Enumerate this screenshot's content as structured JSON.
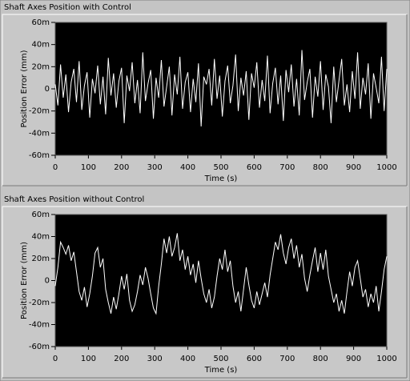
{
  "chart_data": [
    {
      "type": "line",
      "title": "Shaft Axes Position with Control",
      "xlabel": "Time (s)",
      "ylabel": "Position Error (mm)",
      "x": [
        0,
        8,
        16,
        24,
        32,
        40,
        48,
        56,
        64,
        72,
        80,
        88,
        96,
        104,
        112,
        120,
        128,
        136,
        144,
        152,
        160,
        168,
        176,
        184,
        192,
        200,
        208,
        216,
        224,
        232,
        240,
        248,
        256,
        264,
        272,
        280,
        288,
        296,
        304,
        312,
        320,
        328,
        336,
        344,
        352,
        360,
        368,
        376,
        384,
        392,
        400,
        408,
        416,
        424,
        432,
        440,
        448,
        456,
        464,
        472,
        480,
        488,
        496,
        504,
        512,
        520,
        528,
        536,
        544,
        552,
        560,
        568,
        576,
        584,
        592,
        600,
        608,
        616,
        624,
        632,
        640,
        648,
        656,
        664,
        672,
        680,
        688,
        696,
        704,
        712,
        720,
        728,
        736,
        744,
        752,
        760,
        768,
        776,
        784,
        792,
        800,
        808,
        816,
        824,
        832,
        840,
        848,
        856,
        864,
        872,
        880,
        888,
        896,
        904,
        912,
        920,
        928,
        936,
        944,
        952,
        960,
        968,
        976,
        984,
        992,
        1000
      ],
      "series": [
        {
          "color": "#ffffff",
          "values": [
            0.004,
            -0.015,
            0.022,
            -0.008,
            0.013,
            -0.021,
            0.006,
            0.018,
            -0.012,
            0.025,
            -0.019,
            0.003,
            0.015,
            -0.026,
            0.009,
            -0.004,
            0.021,
            -0.014,
            0.011,
            -0.023,
            0.028,
            -0.006,
            0.014,
            -0.017,
            0.007,
            0.019,
            -0.031,
            0.012,
            -0.002,
            0.024,
            -0.013,
            0.008,
            -0.022,
            0.033,
            -0.011,
            0.005,
            0.017,
            -0.027,
            0.01,
            -0.008,
            0.026,
            -0.016,
            0.002,
            0.02,
            -0.024,
            0.013,
            -0.005,
            0.029,
            -0.018,
            0.006,
            0.015,
            -0.021,
            0.009,
            -0.012,
            0.023,
            -0.034,
            0.011,
            0.004,
            0.018,
            -0.015,
            0.027,
            -0.009,
            0.012,
            -0.025,
            0.007,
            0.021,
            -0.013,
            0.003,
            0.031,
            -0.02,
            0.01,
            -0.006,
            0.016,
            -0.028,
            0.014,
            0.001,
            0.024,
            -0.017,
            0.008,
            -0.011,
            0.03,
            -0.022,
            0.005,
            0.019,
            -0.014,
            0.012,
            -0.029,
            0.017,
            -0.003,
            0.022,
            -0.016,
            0.009,
            -0.024,
            0.035,
            -0.01,
            0.006,
            0.018,
            -0.026,
            0.011,
            -0.007,
            0.025,
            -0.019,
            0.013,
            0.002,
            -0.031,
            0.02,
            -0.012,
            0.008,
            0.027,
            -0.015,
            0.004,
            -0.021,
            0.016,
            -0.009,
            0.033,
            -0.018,
            0.01,
            -0.005,
            0.023,
            -0.027,
            0.014,
            0.001,
            -0.013,
            0.029,
            -0.02,
            0.018
          ]
        }
      ],
      "xlim": [
        0,
        1000
      ],
      "xticks": [
        0,
        100,
        200,
        300,
        400,
        500,
        600,
        700,
        800,
        900,
        1000
      ],
      "ylim": [
        -0.06,
        0.06
      ],
      "yticks": [
        {
          "value": 0.06,
          "label": "60m"
        },
        {
          "value": 0.04,
          "label": "40m"
        },
        {
          "value": 0.02,
          "label": "20m"
        },
        0,
        {
          "value": -0.02,
          "label": "-20m"
        },
        {
          "value": -0.04,
          "label": "-40m"
        },
        {
          "value": -0.06,
          "label": "-60m"
        }
      ]
    },
    {
      "type": "line",
      "title": "Shaft Axes Position without Control",
      "xlabel": "Time (s)",
      "ylabel": "Position Error (mm)",
      "x": [
        0,
        8,
        16,
        24,
        32,
        40,
        48,
        56,
        64,
        72,
        80,
        88,
        96,
        104,
        112,
        120,
        128,
        136,
        144,
        152,
        160,
        168,
        176,
        184,
        192,
        200,
        208,
        216,
        224,
        232,
        240,
        248,
        256,
        264,
        272,
        280,
        288,
        296,
        304,
        312,
        320,
        328,
        336,
        344,
        352,
        360,
        368,
        376,
        384,
        392,
        400,
        408,
        416,
        424,
        432,
        440,
        448,
        456,
        464,
        472,
        480,
        488,
        496,
        504,
        512,
        520,
        528,
        536,
        544,
        552,
        560,
        568,
        576,
        584,
        592,
        600,
        608,
        616,
        624,
        632,
        640,
        648,
        656,
        664,
        672,
        680,
        688,
        696,
        704,
        712,
        720,
        728,
        736,
        744,
        752,
        760,
        768,
        776,
        784,
        792,
        800,
        808,
        816,
        824,
        832,
        840,
        848,
        856,
        864,
        872,
        880,
        888,
        896,
        904,
        912,
        920,
        928,
        936,
        944,
        952,
        960,
        968,
        976,
        984,
        992,
        1000
      ],
      "series": [
        {
          "color": "#ffffff",
          "values": [
            -0.005,
            0.012,
            0.035,
            0.03,
            0.024,
            0.032,
            0.018,
            0.026,
            0.008,
            -0.01,
            -0.018,
            -0.006,
            -0.024,
            -0.012,
            0.004,
            0.025,
            0.03,
            0.012,
            0.02,
            -0.008,
            -0.02,
            -0.03,
            -0.015,
            -0.026,
            -0.012,
            0.004,
            -0.008,
            0.006,
            -0.018,
            -0.028,
            -0.022,
            -0.01,
            0.005,
            -0.004,
            0.012,
            0.002,
            -0.012,
            -0.025,
            -0.03,
            -0.005,
            0.015,
            0.038,
            0.025,
            0.04,
            0.022,
            0.03,
            0.043,
            0.018,
            0.028,
            0.01,
            0.022,
            0.005,
            0.015,
            -0.002,
            0.018,
            0.002,
            -0.012,
            -0.02,
            -0.008,
            -0.025,
            -0.015,
            0.004,
            0.02,
            0.01,
            0.028,
            0.008,
            0.018,
            -0.005,
            -0.02,
            -0.01,
            -0.028,
            -0.008,
            0.012,
            -0.004,
            -0.018,
            -0.025,
            -0.01,
            -0.022,
            -0.012,
            -0.002,
            -0.015,
            0.005,
            0.02,
            0.035,
            0.028,
            0.042,
            0.025,
            0.015,
            0.03,
            0.038,
            0.02,
            0.032,
            0.012,
            0.024,
            0.002,
            -0.01,
            0.005,
            0.018,
            0.03,
            0.008,
            0.025,
            0.01,
            0.028,
            0.004,
            -0.008,
            -0.02,
            -0.012,
            -0.028,
            -0.018,
            -0.03,
            -0.01,
            0.008,
            -0.005,
            0.012,
            0.018,
            0.002,
            -0.015,
            -0.008,
            -0.024,
            -0.012,
            -0.02,
            -0.005,
            -0.028,
            -0.01,
            0.01,
            0.022
          ]
        }
      ],
      "xlim": [
        0,
        1000
      ],
      "xticks": [
        0,
        100,
        200,
        300,
        400,
        500,
        600,
        700,
        800,
        900,
        1000
      ],
      "ylim": [
        -0.06,
        0.06
      ],
      "yticks": [
        {
          "value": 0.06,
          "label": "60m"
        },
        {
          "value": 0.04,
          "label": "40m"
        },
        {
          "value": 0.02,
          "label": "20m"
        },
        0,
        {
          "value": -0.02,
          "label": "-20m"
        },
        {
          "value": -0.04,
          "label": "-40m"
        },
        {
          "value": -0.06,
          "label": "-60m"
        }
      ]
    }
  ]
}
